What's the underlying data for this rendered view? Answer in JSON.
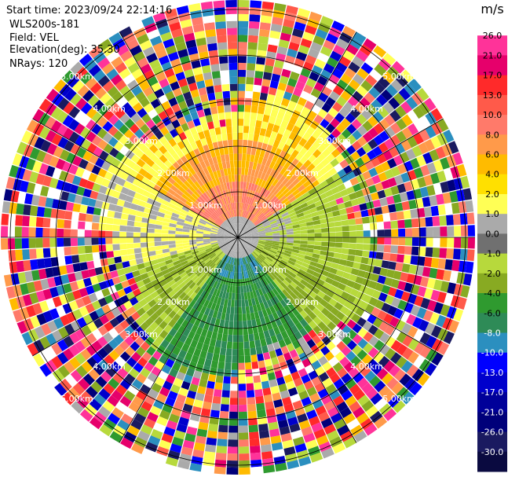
{
  "header": {
    "start_time": "Start time: 2023/09/24 22:14:16",
    "instrument": "WLS200s-181",
    "field": "Field: VEL",
    "elevation": "Elevation(deg): 35.30",
    "nrays": "NRays: 120"
  },
  "chart_data": {
    "type": "polar-ppi",
    "field": "VEL",
    "units": "m/s",
    "nrays": 120,
    "elevation_deg": 35.3,
    "range_rings_km": [
      1.0,
      2.0,
      3.0,
      4.0,
      5.0
    ],
    "range_ring_labels": [
      "1.00km",
      "2.00km",
      "3.00km",
      "4.00km",
      "5.00km"
    ],
    "colorbar_ticks": [
      "26.0",
      "21.0",
      "17.0",
      "13.0",
      "10.0",
      "8.0",
      "6.0",
      "4.0",
      "2.0",
      "1.0",
      "0.0",
      "-1.0",
      "-2.0",
      "-4.0",
      "-6.0",
      "-8.0",
      "-10.0",
      "-13.0",
      "-17.0",
      "-21.0",
      "-26.0",
      "-30.0"
    ],
    "colorbar_colors": [
      "#ffffff",
      "#ff3399",
      "#e6006b",
      "#ff2a2a",
      "#ff5a4a",
      "#ff7a6a",
      "#ff9a4a",
      "#ffbb00",
      "#ffe000",
      "#ffff55",
      "#aaaaaa",
      "#707070",
      "#b7d93c",
      "#88aa22",
      "#2f9a2f",
      "#2e8b57",
      "#2b8fbf",
      "#0000ff",
      "#0000cc",
      "#000099",
      "#00007a",
      "#1a1a60",
      "#0a0a40"
    ]
  }
}
